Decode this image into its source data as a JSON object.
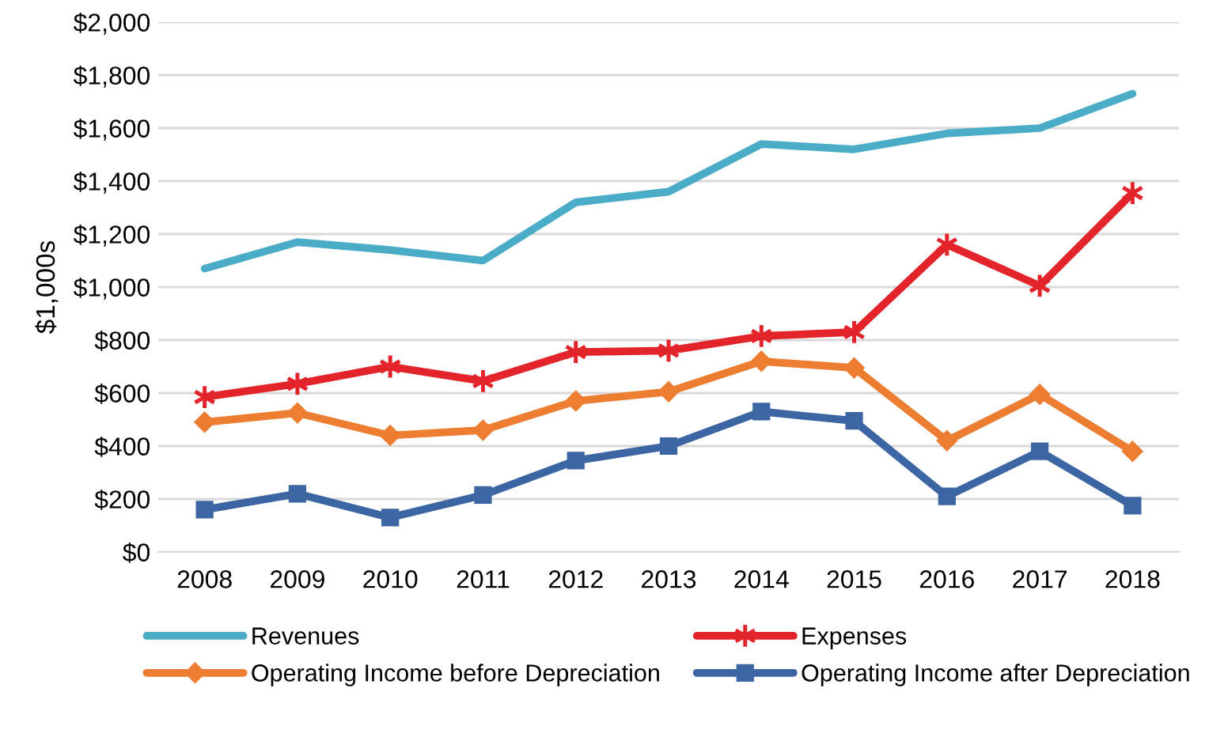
{
  "chart_data": {
    "type": "line",
    "ylabel": "$1,000s",
    "categories": [
      "2008",
      "2009",
      "2010",
      "2011",
      "2012",
      "2013",
      "2014",
      "2015",
      "2016",
      "2017",
      "2018"
    ],
    "series": [
      {
        "name": "Revenues",
        "color": "#4aacc6",
        "marker": "none",
        "values": [
          1070,
          1170,
          1140,
          1100,
          1320,
          1360,
          1540,
          1520,
          1580,
          1600,
          1730
        ]
      },
      {
        "name": "Expenses",
        "color": "#e3242b",
        "marker": "cross",
        "values": [
          585,
          635,
          700,
          645,
          755,
          760,
          815,
          830,
          1160,
          1005,
          1355
        ]
      },
      {
        "name": "Operating Income before Depreciation",
        "color": "#ed7d31",
        "marker": "diamond",
        "values": [
          490,
          525,
          440,
          460,
          570,
          605,
          720,
          695,
          420,
          595,
          380
        ]
      },
      {
        "name": "Operating Income after Depreciation",
        "color": "#3c65a3",
        "marker": "square",
        "values": [
          160,
          220,
          130,
          215,
          345,
          400,
          530,
          495,
          210,
          380,
          175
        ]
      }
    ],
    "ylim": [
      0,
      2000
    ],
    "yticks": [
      {
        "value": 0,
        "label": "$0"
      },
      {
        "value": 200,
        "label": "$200"
      },
      {
        "value": 400,
        "label": "$400"
      },
      {
        "value": 600,
        "label": "$600"
      },
      {
        "value": 800,
        "label": "$800"
      },
      {
        "value": 1000,
        "label": "$1,000"
      },
      {
        "value": 1200,
        "label": "$1,200"
      },
      {
        "value": 1400,
        "label": "$1,400"
      },
      {
        "value": 1600,
        "label": "$1,600"
      },
      {
        "value": 1800,
        "label": "$1,800"
      },
      {
        "value": 2000,
        "label": "$2,000"
      }
    ],
    "grid": "y",
    "legend": "bottom",
    "line_style": "solid"
  }
}
